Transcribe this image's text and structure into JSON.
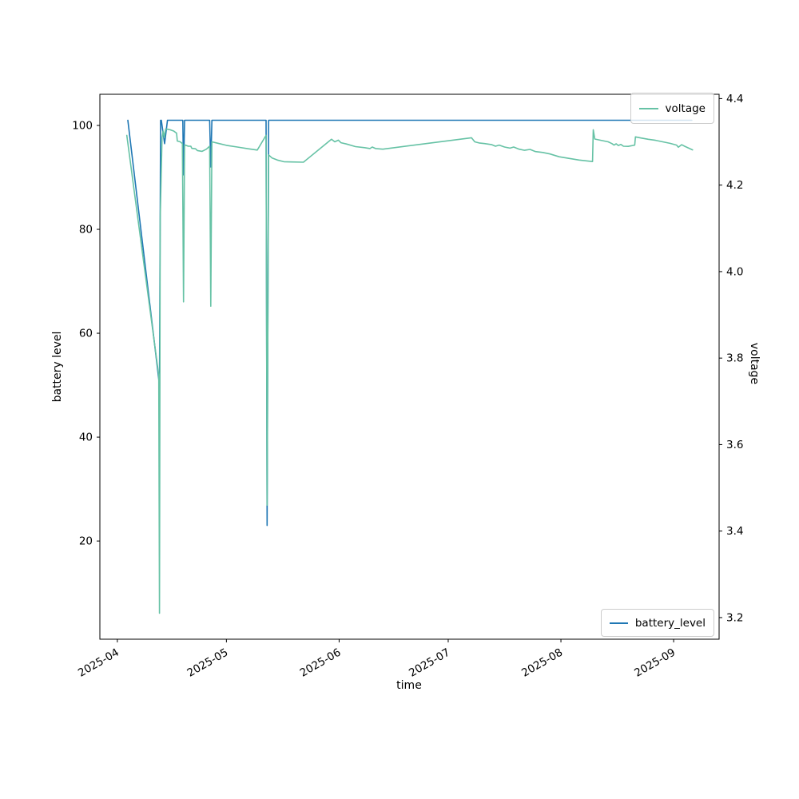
{
  "chart_data": {
    "type": "line",
    "title": "",
    "xlabel": "time",
    "x_unit": "days since 2025-04-01",
    "x_ticks": [
      {
        "day": 0,
        "label": "2025-04"
      },
      {
        "day": 30,
        "label": "2025-05"
      },
      {
        "day": 61,
        "label": "2025-06"
      },
      {
        "day": 91,
        "label": "2025-07"
      },
      {
        "day": 122,
        "label": "2025-08"
      },
      {
        "day": 153,
        "label": "2025-09"
      }
    ],
    "x_range_days": [
      -4.8,
      165.5
    ],
    "x_tick_rotation_deg": 30,
    "grid": false,
    "axes": {
      "left": {
        "label": "battery level",
        "ticks": [
          20,
          40,
          60,
          80,
          100
        ],
        "range": [
          1.1,
          106.0
        ]
      },
      "right": {
        "label": "voltage",
        "ticks": [
          3.2,
          3.4,
          3.6,
          3.8,
          4.0,
          4.2,
          4.4
        ],
        "range": [
          3.15,
          4.41
        ]
      }
    },
    "legend": {
      "top_right": "voltage",
      "bottom_right": "battery_level"
    },
    "colors": {
      "battery_level": "#1f77b4",
      "voltage": "#66c2a5"
    },
    "series": [
      {
        "name": "battery_level",
        "axis": "left",
        "color": "#1f77b4",
        "points": [
          [
            2.9,
            101
          ],
          [
            11.6,
            50
          ],
          [
            11.9,
            101
          ],
          [
            12.1,
            101
          ],
          [
            13.0,
            96.5
          ],
          [
            13.8,
            101
          ],
          [
            18.0,
            101
          ],
          [
            18.2,
            90.5
          ],
          [
            18.5,
            101
          ],
          [
            25.4,
            101
          ],
          [
            25.7,
            92
          ],
          [
            26.0,
            101
          ],
          [
            40.9,
            101
          ],
          [
            41.2,
            23
          ],
          [
            41.6,
            101
          ],
          [
            158.0,
            101
          ]
        ]
      },
      {
        "name": "voltage",
        "axis": "right",
        "color": "#66c2a5",
        "points": [
          [
            2.6,
            4.315
          ],
          [
            11.4,
            3.76
          ],
          [
            11.6,
            3.21
          ],
          [
            11.8,
            4.12
          ],
          [
            12.3,
            4.31
          ],
          [
            12.6,
            4.325
          ],
          [
            12.9,
            4.31
          ],
          [
            13.3,
            4.33
          ],
          [
            14.5,
            4.328
          ],
          [
            15.5,
            4.325
          ],
          [
            16.3,
            4.32
          ],
          [
            16.5,
            4.302
          ],
          [
            17.3,
            4.3
          ],
          [
            17.9,
            4.296
          ],
          [
            18.2,
            3.93
          ],
          [
            18.5,
            4.293
          ],
          [
            19.5,
            4.29
          ],
          [
            20.2,
            4.29
          ],
          [
            20.5,
            4.285
          ],
          [
            21.5,
            4.284
          ],
          [
            22.0,
            4.28
          ],
          [
            23.3,
            4.278
          ],
          [
            24.5,
            4.283
          ],
          [
            25.4,
            4.29
          ],
          [
            25.7,
            3.92
          ],
          [
            26.0,
            4.3
          ],
          [
            28.0,
            4.296
          ],
          [
            30.0,
            4.292
          ],
          [
            33.0,
            4.288
          ],
          [
            36.0,
            4.284
          ],
          [
            38.5,
            4.281
          ],
          [
            40.9,
            4.315
          ],
          [
            41.2,
            3.46
          ],
          [
            41.6,
            4.27
          ],
          [
            42.5,
            4.263
          ],
          [
            44.0,
            4.258
          ],
          [
            45.8,
            4.254
          ],
          [
            48.0,
            4.2535
          ],
          [
            51.2,
            4.253
          ],
          [
            58.9,
            4.306
          ],
          [
            59.8,
            4.3
          ],
          [
            60.8,
            4.304
          ],
          [
            61.5,
            4.298
          ],
          [
            63.0,
            4.295
          ],
          [
            65.5,
            4.289
          ],
          [
            68.0,
            4.2865
          ],
          [
            69.5,
            4.2845
          ],
          [
            70.1,
            4.288
          ],
          [
            71.0,
            4.2845
          ],
          [
            73.0,
            4.283
          ],
          [
            97.4,
            4.3095
          ],
          [
            98.3,
            4.3
          ],
          [
            99.5,
            4.2975
          ],
          [
            101.0,
            4.296
          ],
          [
            103.0,
            4.2935
          ],
          [
            104.0,
            4.29
          ],
          [
            105.0,
            4.2925
          ],
          [
            106.5,
            4.288
          ],
          [
            108.0,
            4.2855
          ],
          [
            109.0,
            4.288
          ],
          [
            110.5,
            4.283
          ],
          [
            112.0,
            4.2805
          ],
          [
            113.5,
            4.2825
          ],
          [
            115.0,
            4.2775
          ],
          [
            117.0,
            4.2755
          ],
          [
            119.0,
            4.272
          ],
          [
            121.5,
            4.2655
          ],
          [
            124.0,
            4.262
          ],
          [
            127.0,
            4.258
          ],
          [
            130.7,
            4.2545
          ],
          [
            130.9,
            4.328
          ],
          [
            131.3,
            4.3065
          ],
          [
            133.0,
            4.3035
          ],
          [
            135.0,
            4.3
          ],
          [
            136.0,
            4.296
          ],
          [
            136.6,
            4.2925
          ],
          [
            137.2,
            4.2955
          ],
          [
            137.8,
            4.2915
          ],
          [
            138.5,
            4.294
          ],
          [
            139.2,
            4.29
          ],
          [
            140.5,
            4.2895
          ],
          [
            142.3,
            4.2925
          ],
          [
            142.5,
            4.3115
          ],
          [
            144.0,
            4.309
          ],
          [
            146.0,
            4.306
          ],
          [
            148.0,
            4.3035
          ],
          [
            150.0,
            4.3
          ],
          [
            152.0,
            4.2965
          ],
          [
            153.8,
            4.2925
          ],
          [
            154.3,
            4.2875
          ],
          [
            155.2,
            4.2935
          ],
          [
            156.0,
            4.29
          ],
          [
            158.2,
            4.2815
          ]
        ]
      }
    ]
  }
}
